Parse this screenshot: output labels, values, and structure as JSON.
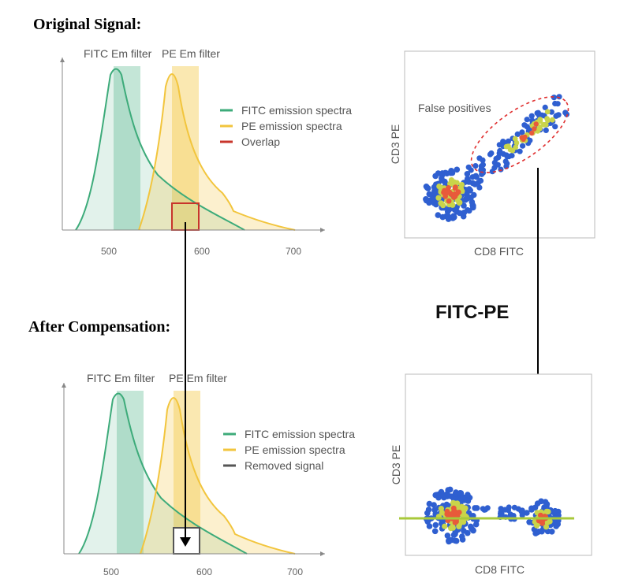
{
  "titles": {
    "original": "Original Signal:",
    "after": "After Compensation:",
    "center": "FITC-PE"
  },
  "spectra_top": {
    "filter_fitc": "FITC Em filter",
    "filter_pe": "PE Em filter",
    "legend": [
      "FITC emission spectra",
      "PE emission spectra",
      "Overlap"
    ],
    "ticks": [
      "500",
      "600",
      "700"
    ]
  },
  "spectra_bottom": {
    "filter_fitc": "FITC Em filter",
    "filter_pe": "PE Em filter",
    "legend": [
      "FITC emission spectra",
      "PE emission spectra",
      "Removed signal"
    ],
    "ticks": [
      "500",
      "600",
      "700"
    ]
  },
  "scatter_top": {
    "annotation": "False positives",
    "xlabel": "CD8 FITC",
    "ylabel": "CD3 PE"
  },
  "scatter_bottom": {
    "xlabel": "CD8 FITC",
    "ylabel": "CD3 PE"
  },
  "colors": {
    "fitc": "#3dab7a",
    "pe": "#f2c53d",
    "overlap": "#c8352b",
    "removed": "#555555",
    "dot_blue": "#2f5fd0",
    "dot_yellow": "#c9d44a",
    "dot_red": "#e85a3a",
    "line": "#a8c93a"
  }
}
